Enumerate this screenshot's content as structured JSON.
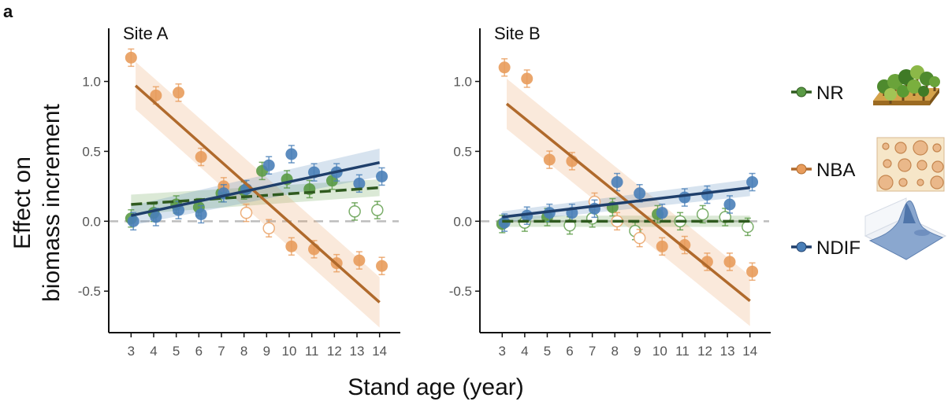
{
  "panel_label": "a",
  "x_axis_title": "Stand age (year)",
  "y_axis_title": [
    "Effect on",
    "biomass increment"
  ],
  "chart_data": [
    {
      "type": "scatter",
      "title": "Site A",
      "xlabel": "Stand age (year)",
      "ylabel": "Effect on biomass increment",
      "x_ticks": [
        3,
        4,
        5,
        6,
        7,
        8,
        9,
        10,
        11,
        12,
        13,
        14
      ],
      "y_ticks": [
        -0.5,
        0.0,
        0.5,
        1.0
      ],
      "y_tick_labels": [
        "-0.5",
        "0.0",
        "0.5",
        "1.0"
      ],
      "xlim": [
        2.5,
        14.5
      ],
      "ylim": [
        -0.78,
        1.38
      ],
      "series": [
        {
          "name": "NR",
          "color": "#5a9a45",
          "points": [
            {
              "x": 3,
              "y": 0.02,
              "filled": true
            },
            {
              "x": 4,
              "y": 0.06,
              "filled": true
            },
            {
              "x": 5,
              "y": 0.12,
              "filled": true
            },
            {
              "x": 6,
              "y": 0.1,
              "filled": true
            },
            {
              "x": 7,
              "y": 0.2,
              "filled": true
            },
            {
              "x": 8,
              "y": 0.22,
              "filled": true
            },
            {
              "x": 8.8,
              "y": 0.36,
              "filled": true
            },
            {
              "x": 9.9,
              "y": 0.3,
              "filled": true
            },
            {
              "x": 10.9,
              "y": 0.23,
              "filled": true
            },
            {
              "x": 11.9,
              "y": 0.29,
              "filled": true
            },
            {
              "x": 12.9,
              "y": 0.07,
              "filled": false
            },
            {
              "x": 13.9,
              "y": 0.08,
              "filled": false
            }
          ],
          "trend": {
            "x1": 3,
            "y1": 0.12,
            "x2": 14,
            "y2": 0.24,
            "dashed": true,
            "color": "#2f5a1f",
            "band_lo1": 0.05,
            "band_hi1": 0.19,
            "band_lo2": 0.18,
            "band_hi2": 0.3
          }
        },
        {
          "name": "NBA",
          "color": "#e89c5c",
          "points": [
            {
              "x": 3,
              "y": 1.17,
              "filled": true
            },
            {
              "x": 4.1,
              "y": 0.9,
              "filled": true
            },
            {
              "x": 5.1,
              "y": 0.92,
              "filled": true
            },
            {
              "x": 6.1,
              "y": 0.46,
              "filled": true
            },
            {
              "x": 7.1,
              "y": 0.25,
              "filled": true
            },
            {
              "x": 8.1,
              "y": 0.06,
              "filled": false
            },
            {
              "x": 9.1,
              "y": -0.05,
              "filled": false
            },
            {
              "x": 10.1,
              "y": -0.18,
              "filled": true
            },
            {
              "x": 11.1,
              "y": -0.2,
              "filled": true
            },
            {
              "x": 12.1,
              "y": -0.3,
              "filled": true
            },
            {
              "x": 13.1,
              "y": -0.28,
              "filled": true
            },
            {
              "x": 14.1,
              "y": -0.32,
              "filled": true
            }
          ],
          "trend": {
            "x1": 3.2,
            "y1": 0.97,
            "x2": 14,
            "y2": -0.58,
            "dashed": false,
            "color": "#b06a2c",
            "band_lo1": 0.8,
            "band_hi1": 1.14,
            "band_lo2": -0.76,
            "band_hi2": -0.4
          }
        },
        {
          "name": "NDIF",
          "color": "#4a7fb8",
          "points": [
            {
              "x": 3.1,
              "y": 0.0,
              "filled": true
            },
            {
              "x": 4.1,
              "y": 0.03,
              "filled": true
            },
            {
              "x": 5.1,
              "y": 0.08,
              "filled": true
            },
            {
              "x": 6.1,
              "y": 0.05,
              "filled": true
            },
            {
              "x": 7.1,
              "y": 0.2,
              "filled": true
            },
            {
              "x": 8.1,
              "y": 0.23,
              "filled": true
            },
            {
              "x": 9.1,
              "y": 0.4,
              "filled": true
            },
            {
              "x": 10.1,
              "y": 0.48,
              "filled": true
            },
            {
              "x": 11.1,
              "y": 0.35,
              "filled": true
            },
            {
              "x": 12.1,
              "y": 0.35,
              "filled": true
            },
            {
              "x": 13.1,
              "y": 0.27,
              "filled": true
            },
            {
              "x": 14.1,
              "y": 0.32,
              "filled": true
            }
          ],
          "trend": {
            "x1": 3,
            "y1": 0.04,
            "x2": 14,
            "y2": 0.42,
            "dashed": false,
            "color": "#1f3f6b",
            "band_lo1": -0.03,
            "band_hi1": 0.11,
            "band_lo2": 0.32,
            "band_hi2": 0.52
          }
        }
      ]
    },
    {
      "type": "scatter",
      "title": "Site B",
      "xlabel": "Stand age (year)",
      "ylabel": "Effect on biomass increment",
      "x_ticks": [
        3,
        4,
        5,
        6,
        7,
        8,
        9,
        10,
        11,
        12,
        13,
        14
      ],
      "y_ticks": [
        -0.5,
        0.0,
        0.5,
        1.0
      ],
      "y_tick_labels": [
        "-0.5",
        "0.0",
        "0.5",
        "1.0"
      ],
      "xlim": [
        2.5,
        14.5
      ],
      "ylim": [
        -0.78,
        1.38
      ],
      "series": [
        {
          "name": "NR",
          "color": "#5a9a45",
          "points": [
            {
              "x": 3,
              "y": -0.02,
              "filled": true
            },
            {
              "x": 4,
              "y": -0.01,
              "filled": false
            },
            {
              "x": 5,
              "y": 0.03,
              "filled": true
            },
            {
              "x": 6,
              "y": -0.03,
              "filled": false
            },
            {
              "x": 7,
              "y": 0.02,
              "filled": false
            },
            {
              "x": 7.9,
              "y": 0.1,
              "filled": true
            },
            {
              "x": 8.9,
              "y": -0.07,
              "filled": false
            },
            {
              "x": 9.9,
              "y": 0.05,
              "filled": true
            },
            {
              "x": 10.9,
              "y": 0.0,
              "filled": false
            },
            {
              "x": 11.9,
              "y": 0.05,
              "filled": false
            },
            {
              "x": 12.9,
              "y": 0.03,
              "filled": false
            },
            {
              "x": 13.9,
              "y": -0.04,
              "filled": false
            }
          ],
          "trend": {
            "x1": 3,
            "y1": 0.0,
            "x2": 14,
            "y2": 0.0,
            "dashed": true,
            "color": "#2f5a1f",
            "band_lo1": -0.04,
            "band_hi1": 0.04,
            "band_lo2": -0.04,
            "band_hi2": 0.04
          }
        },
        {
          "name": "NBA",
          "color": "#e89c5c",
          "points": [
            {
              "x": 3.1,
              "y": 1.1,
              "filled": true
            },
            {
              "x": 4.1,
              "y": 1.02,
              "filled": true
            },
            {
              "x": 5.1,
              "y": 0.44,
              "filled": true
            },
            {
              "x": 6.1,
              "y": 0.43,
              "filled": true
            },
            {
              "x": 7.1,
              "y": 0.14,
              "filled": false
            },
            {
              "x": 8.1,
              "y": 0.0,
              "filled": false
            },
            {
              "x": 9.1,
              "y": -0.12,
              "filled": false
            },
            {
              "x": 10.1,
              "y": -0.18,
              "filled": true
            },
            {
              "x": 11.1,
              "y": -0.17,
              "filled": true
            },
            {
              "x": 12.1,
              "y": -0.29,
              "filled": true
            },
            {
              "x": 13.1,
              "y": -0.29,
              "filled": true
            },
            {
              "x": 14.1,
              "y": -0.36,
              "filled": true
            }
          ],
          "trend": {
            "x1": 3.2,
            "y1": 0.84,
            "x2": 14,
            "y2": -0.57,
            "dashed": false,
            "color": "#b06a2c",
            "band_lo1": 0.66,
            "band_hi1": 1.02,
            "band_lo2": -0.75,
            "band_hi2": -0.39
          }
        },
        {
          "name": "NDIF",
          "color": "#4a7fb8",
          "points": [
            {
              "x": 3.1,
              "y": -0.01,
              "filled": true
            },
            {
              "x": 4.1,
              "y": 0.04,
              "filled": true
            },
            {
              "x": 5.1,
              "y": 0.06,
              "filled": true
            },
            {
              "x": 6.1,
              "y": 0.06,
              "filled": true
            },
            {
              "x": 7.1,
              "y": 0.09,
              "filled": true
            },
            {
              "x": 8.1,
              "y": 0.28,
              "filled": true
            },
            {
              "x": 9.1,
              "y": 0.2,
              "filled": true
            },
            {
              "x": 10.1,
              "y": 0.06,
              "filled": true
            },
            {
              "x": 11.1,
              "y": 0.17,
              "filled": true
            },
            {
              "x": 12.1,
              "y": 0.19,
              "filled": true
            },
            {
              "x": 13.1,
              "y": 0.12,
              "filled": true
            },
            {
              "x": 14.1,
              "y": 0.28,
              "filled": true
            }
          ],
          "trend": {
            "x1": 3,
            "y1": 0.03,
            "x2": 14,
            "y2": 0.24,
            "dashed": false,
            "color": "#1f3f6b",
            "band_lo1": -0.01,
            "band_hi1": 0.07,
            "band_lo2": 0.18,
            "band_hi2": 0.3
          }
        }
      ]
    }
  ],
  "legend": [
    {
      "name": "NR",
      "color": "#5a9a45",
      "line": "#2f5a1f",
      "icon": "forest-plot-icon"
    },
    {
      "name": "NBA",
      "color": "#e89c5c",
      "line": "#b06a2c",
      "icon": "circles-grid-icon"
    },
    {
      "name": "NDIF",
      "color": "#4a7fb8",
      "line": "#1f3f6b",
      "icon": "surface-plot-icon"
    }
  ]
}
